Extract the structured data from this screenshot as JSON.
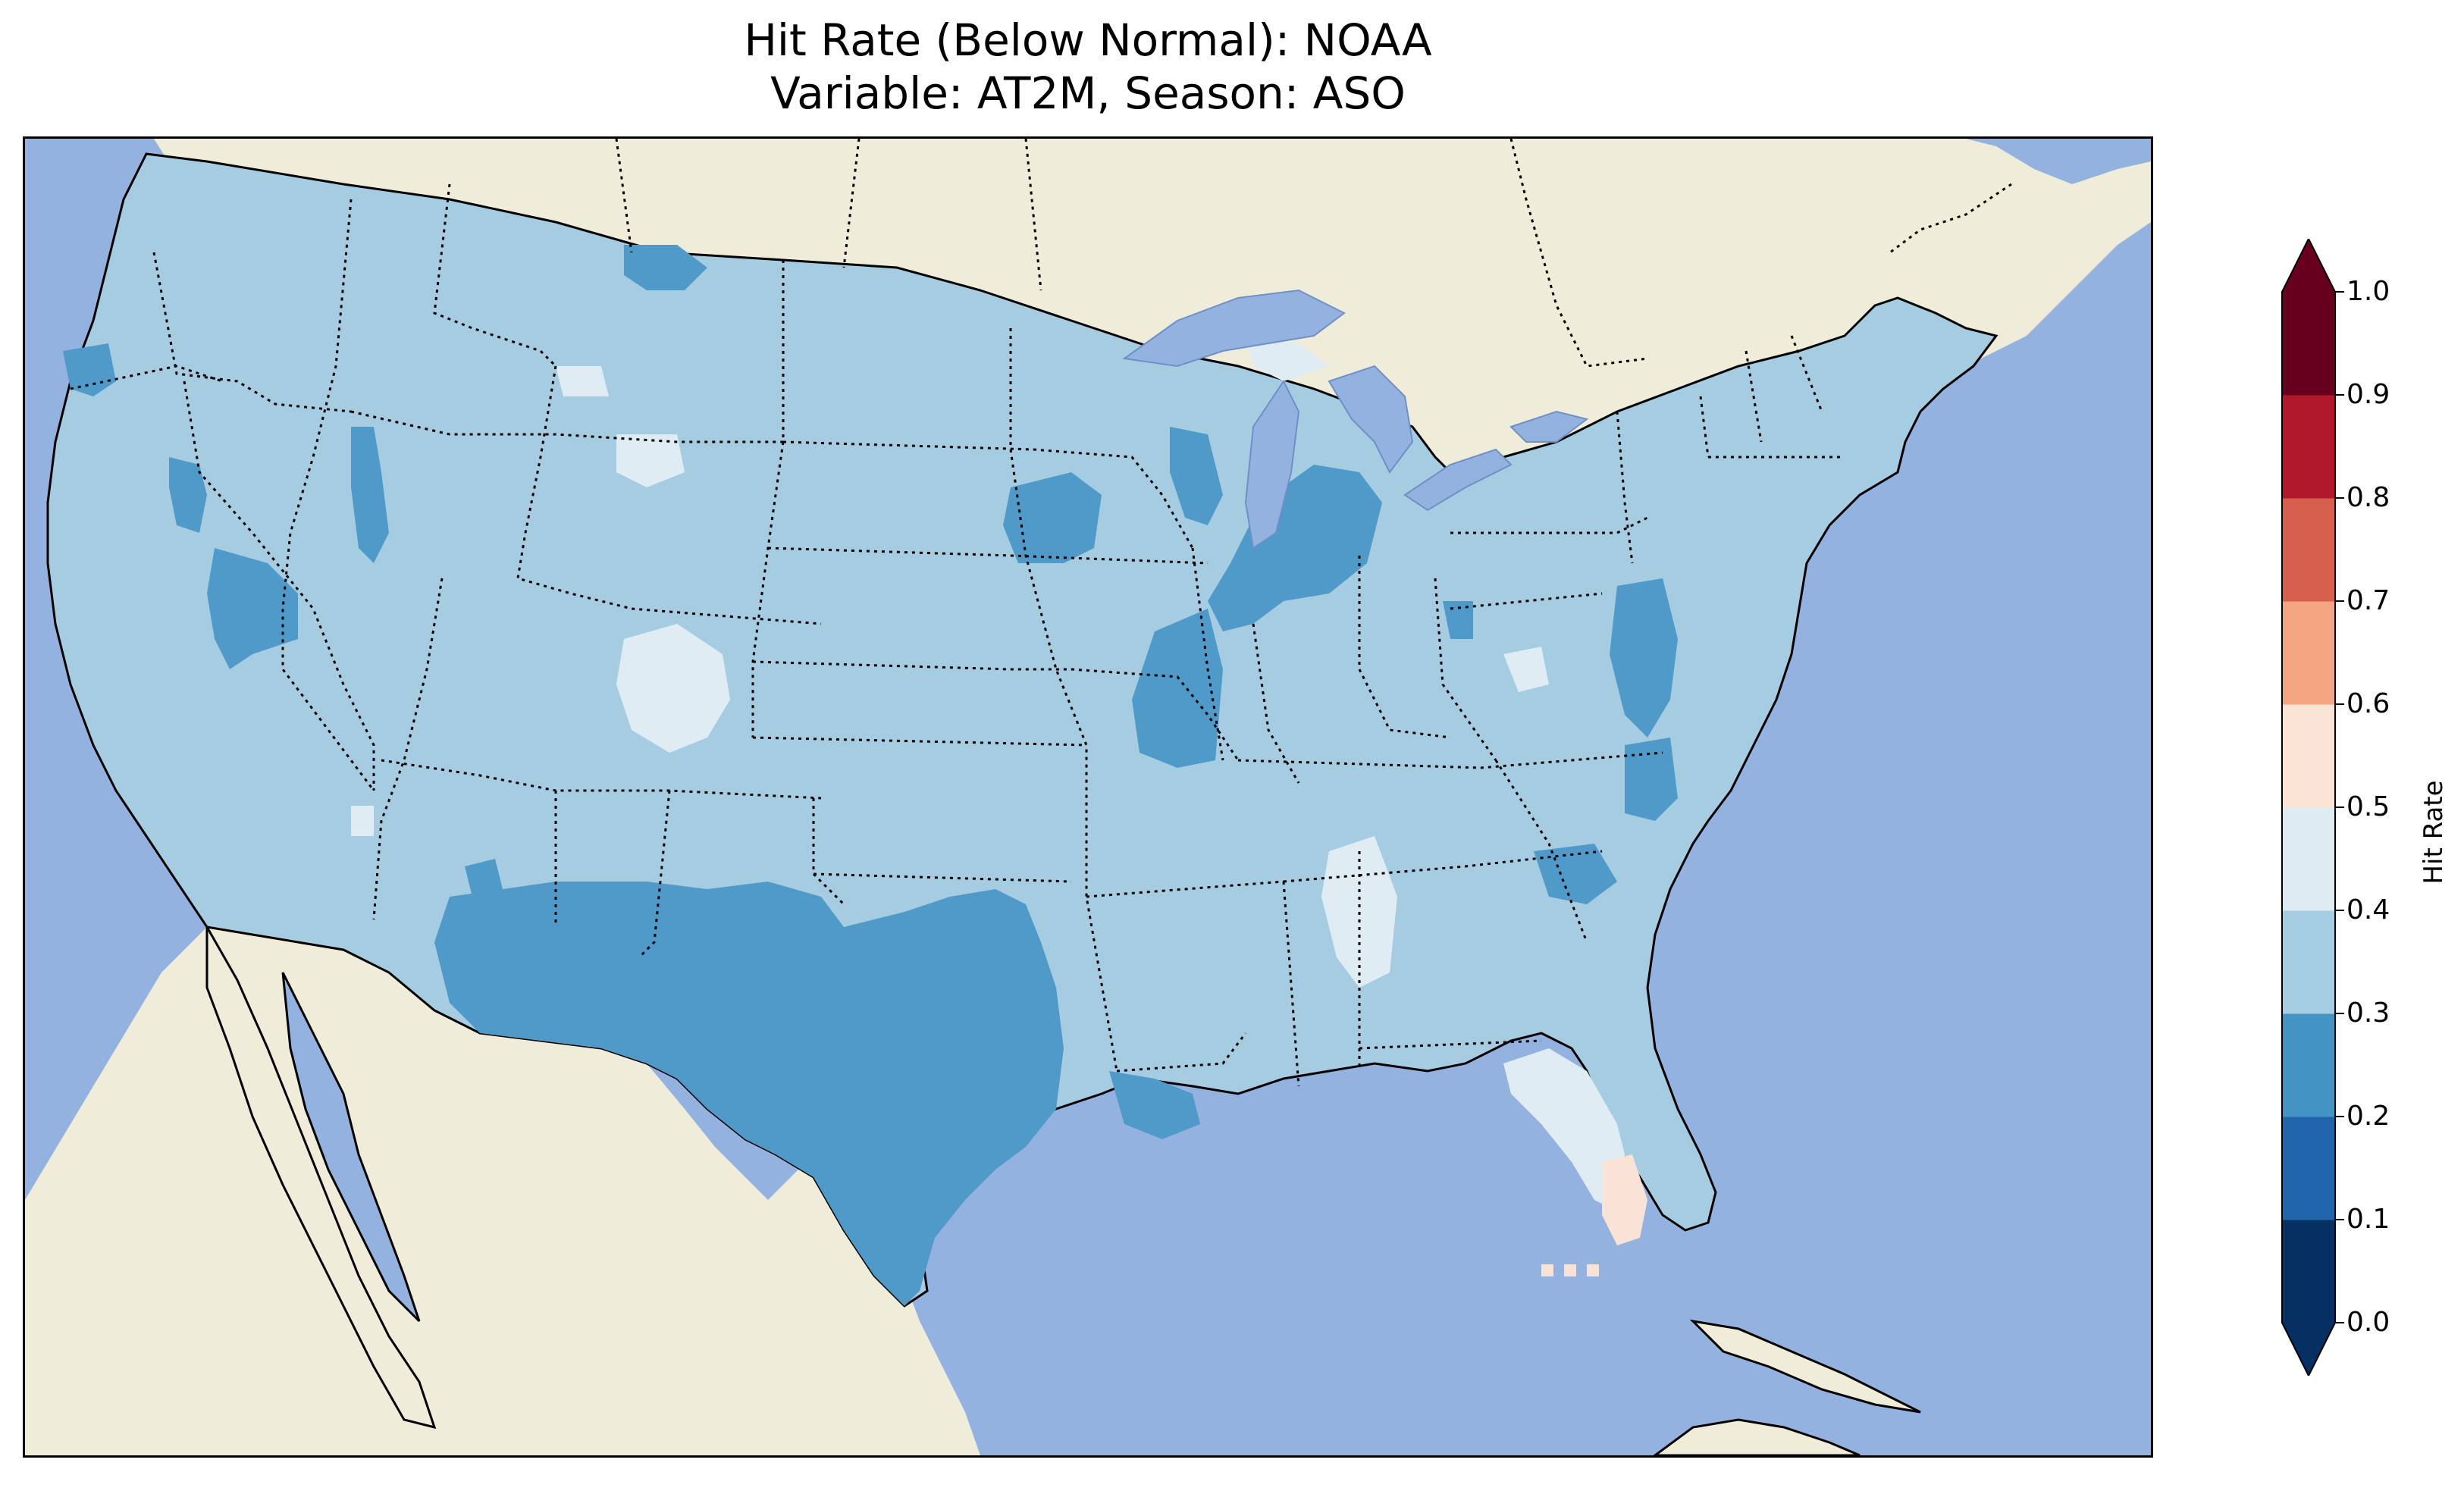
{
  "title": {
    "line1": "Hit Rate (Below Normal): NOAA",
    "line2": "Variable: AT2M, Season: ASO"
  },
  "map": {
    "region": "Contiguous United States",
    "ocean_color": "#94b2e0",
    "land_color": "#efedd9",
    "lake_color": "#94b2e0",
    "state_borders": "dotted",
    "coastlines": "solid",
    "regions": [
      {
        "name": "dominant",
        "hit_rate_bin": "0.3-0.4",
        "color": "#a6cce2"
      },
      {
        "name": "texas-new-mexico",
        "hit_rate_bin": "0.2-0.3",
        "color": "#4f9ac9"
      },
      {
        "name": "southern-nevada",
        "hit_rate_bin": "0.2-0.3",
        "color": "#4f9ac9"
      },
      {
        "name": "northern-california",
        "hit_rate_bin": "0.2-0.3",
        "color": "#4f9ac9"
      },
      {
        "name": "iowa-minnesota",
        "hit_rate_bin": "0.2-0.3",
        "color": "#4f9ac9"
      },
      {
        "name": "wisconsin",
        "hit_rate_bin": "0.2-0.3",
        "color": "#4f9ac9"
      },
      {
        "name": "michigan-indiana-ohio",
        "hit_rate_bin": "0.2-0.3",
        "color": "#4f9ac9"
      },
      {
        "name": "missouri-illinois",
        "hit_rate_bin": "0.2-0.3",
        "color": "#4f9ac9"
      },
      {
        "name": "louisiana",
        "hit_rate_bin": "0.2-0.3",
        "color": "#4f9ac9"
      },
      {
        "name": "mid-atlantic-coast",
        "hit_rate_bin": "0.2-0.3",
        "color": "#4f9ac9"
      },
      {
        "name": "carolinas",
        "hit_rate_bin": "0.2-0.3",
        "color": "#4f9ac9"
      },
      {
        "name": "montana-north",
        "hit_rate_bin": "0.2-0.3",
        "color": "#4f9ac9"
      },
      {
        "name": "colorado",
        "hit_rate_bin": "0.4-0.5",
        "color": "#e0ecf4"
      },
      {
        "name": "wyoming",
        "hit_rate_bin": "0.4-0.5",
        "color": "#e0ecf4"
      },
      {
        "name": "alabama-mississippi",
        "hit_rate_bin": "0.4-0.5",
        "color": "#e0ecf4"
      },
      {
        "name": "north-florida",
        "hit_rate_bin": "0.4-0.5",
        "color": "#e0ecf4"
      },
      {
        "name": "upper-michigan",
        "hit_rate_bin": "0.4-0.5",
        "color": "#e0ecf4"
      },
      {
        "name": "south-florida",
        "hit_rate_bin": "0.5-0.6",
        "color": "#f9e2d6"
      }
    ]
  },
  "colorbar": {
    "label": "Hit Rate",
    "ticks": [
      "0.0",
      "0.1",
      "0.2",
      "0.3",
      "0.4",
      "0.5",
      "0.6",
      "0.7",
      "0.8",
      "0.9",
      "1.0"
    ],
    "bins": [
      {
        "range": [
          0.0,
          0.1
        ],
        "color": "#053061"
      },
      {
        "range": [
          0.1,
          0.2
        ],
        "color": "#2166ac"
      },
      {
        "range": [
          0.2,
          0.3
        ],
        "color": "#4393c3"
      },
      {
        "range": [
          0.3,
          0.4
        ],
        "color": "#a6cee3"
      },
      {
        "range": [
          0.4,
          0.5
        ],
        "color": "#deebf3"
      },
      {
        "range": [
          0.5,
          0.6
        ],
        "color": "#fbe3d6"
      },
      {
        "range": [
          0.6,
          0.7
        ],
        "color": "#f4a582"
      },
      {
        "range": [
          0.7,
          0.8
        ],
        "color": "#d6604d"
      },
      {
        "range": [
          0.8,
          0.9
        ],
        "color": "#b2182b"
      },
      {
        "range": [
          0.9,
          1.0
        ],
        "color": "#67001f"
      }
    ],
    "extend": "both"
  }
}
